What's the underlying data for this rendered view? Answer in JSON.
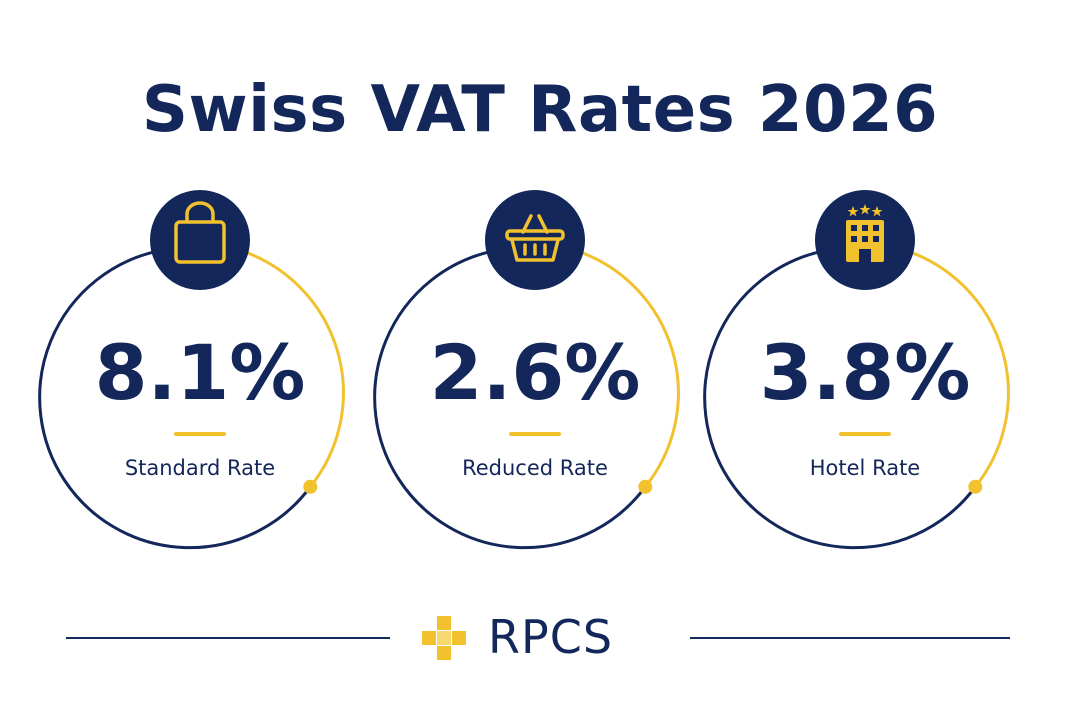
{
  "title": "Swiss VAT Rates 2026",
  "colors": {
    "navy": "#14275a",
    "gold": "#f2c12e",
    "background": "#ffffff"
  },
  "rates": [
    {
      "value": "8.1%",
      "label": "Standard Rate",
      "icon": "shopping-bag-icon"
    },
    {
      "value": "2.6%",
      "label": "Reduced Rate",
      "icon": "shopping-basket-icon"
    },
    {
      "value": "3.8%",
      "label": "Hotel Rate",
      "icon": "hotel-building-icon"
    }
  ],
  "footer": {
    "brand": "RPCS",
    "logo_icon": "plus-cross-logo-icon"
  }
}
